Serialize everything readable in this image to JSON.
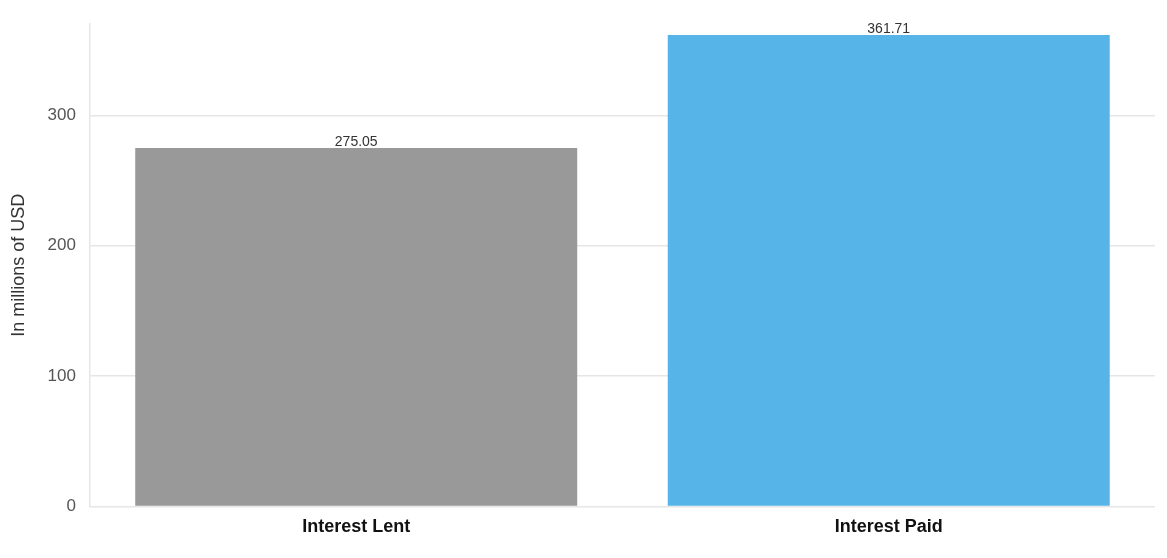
{
  "chart_data": {
    "type": "bar",
    "ylabel": "In millions of USD",
    "categories": [
      "Interest Lent",
      "Interest Paid"
    ],
    "values": [
      275.05,
      361.71
    ],
    "colors": [
      "#999999",
      "#56b4e9"
    ],
    "ylim": [
      0,
      370
    ],
    "yticks": [
      0,
      100,
      200,
      300
    ],
    "grid": "y",
    "data_labels": true,
    "legend": false
  }
}
